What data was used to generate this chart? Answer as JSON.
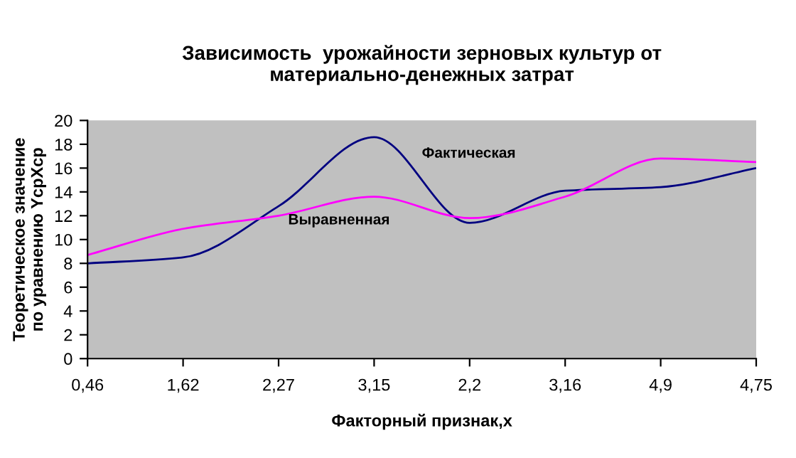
{
  "chart_data": {
    "type": "line",
    "title": "Зависимость  урожайности зерновых культур от\nматериально-денежных затрат",
    "xlabel": "Факторный признак,x",
    "ylabel": "Теоретическое значение\nпо уравнению YсрXср",
    "categories": [
      "0,46",
      "1,62",
      "2,27",
      "3,15",
      "2,2",
      "3,16",
      "4,9",
      "4,75"
    ],
    "series": [
      {
        "name": "Фактическая",
        "color": "#000080",
        "values": [
          8.0,
          8.5,
          12.8,
          18.6,
          11.4,
          14.1,
          14.4,
          16.0
        ]
      },
      {
        "name": "Выравненная",
        "color": "#ff00ff",
        "values": [
          8.7,
          10.9,
          12.0,
          13.6,
          11.8,
          13.6,
          16.8,
          16.5
        ]
      }
    ],
    "ylim": [
      0,
      20
    ],
    "yticks": [
      0,
      2,
      4,
      6,
      8,
      10,
      12,
      14,
      16,
      18,
      20
    ],
    "grid": false,
    "legend": false,
    "marker": "none",
    "line_style": "solid"
  }
}
